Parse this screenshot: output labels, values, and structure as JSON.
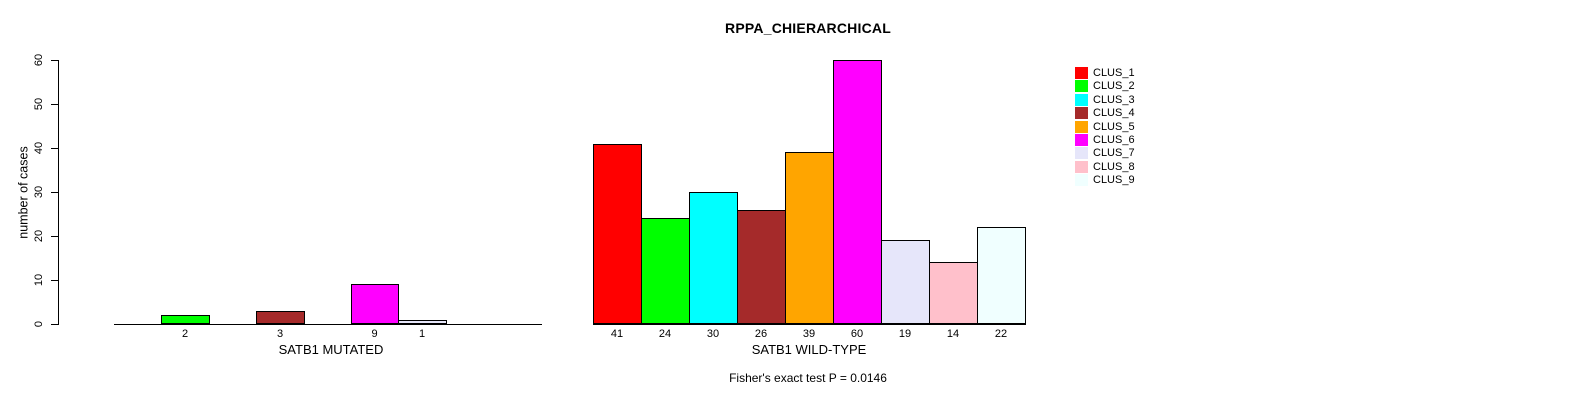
{
  "chart_data": {
    "type": "bar",
    "title": "RPPA_CHIERARCHICAL",
    "ylabel": "number of cases",
    "ylim": [
      0,
      60
    ],
    "yticks": [
      0,
      10,
      20,
      30,
      40,
      50,
      60
    ],
    "grid": false,
    "legend_position": "right",
    "annotation": "Fisher's exact test P = 0.0146",
    "clusters": [
      "CLUS_1",
      "CLUS_2",
      "CLUS_3",
      "CLUS_4",
      "CLUS_5",
      "CLUS_6",
      "CLUS_7",
      "CLUS_8",
      "CLUS_9"
    ],
    "colors": [
      "#ff0000",
      "#00ff00",
      "#00ffff",
      "#a52a2a",
      "#ffa500",
      "#ff00ff",
      "#e6e6fa",
      "#ffc0cb",
      "#f0ffff"
    ],
    "bar_border_color": "#000000",
    "groups": [
      {
        "label": "SATB1 MUTATED",
        "values": [
          0,
          2,
          0,
          3,
          0,
          9,
          1,
          0,
          0
        ],
        "bar_labels": [
          "",
          "2",
          "",
          "3",
          "",
          "9",
          "1",
          "",
          ""
        ]
      },
      {
        "label": "SATB1 WILD-TYPE",
        "values": [
          41,
          24,
          30,
          26,
          39,
          60,
          19,
          14,
          22
        ],
        "bar_labels": [
          "41",
          "24",
          "30",
          "26",
          "39",
          "60",
          "19",
          "14",
          "22"
        ]
      }
    ]
  }
}
